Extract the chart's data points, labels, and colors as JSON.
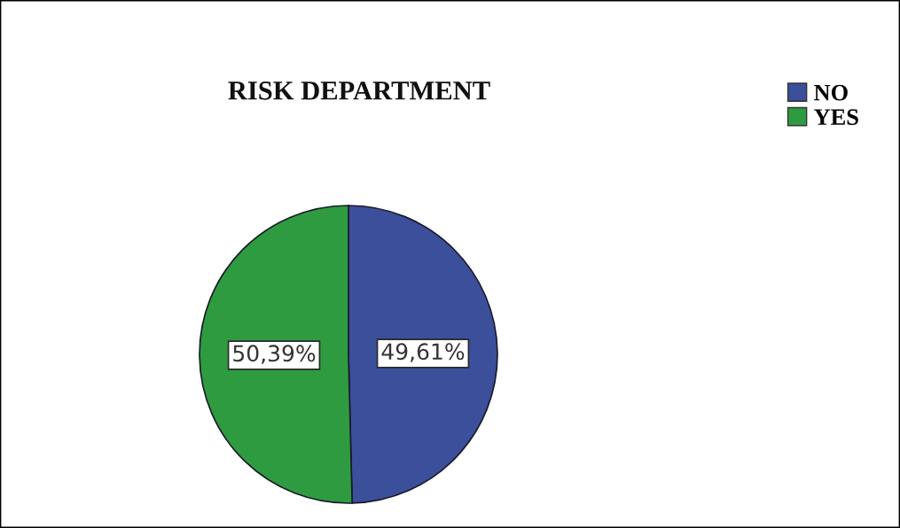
{
  "chart_data": {
    "type": "pie",
    "title": "RISK DEPARTMENT",
    "categories": [
      "NO",
      "YES"
    ],
    "values": [
      49.61,
      50.39
    ],
    "colors": [
      "#3b4f9b",
      "#2f9b40"
    ],
    "value_labels": [
      "49,61%",
      "50,39%"
    ],
    "legend": "top right"
  }
}
